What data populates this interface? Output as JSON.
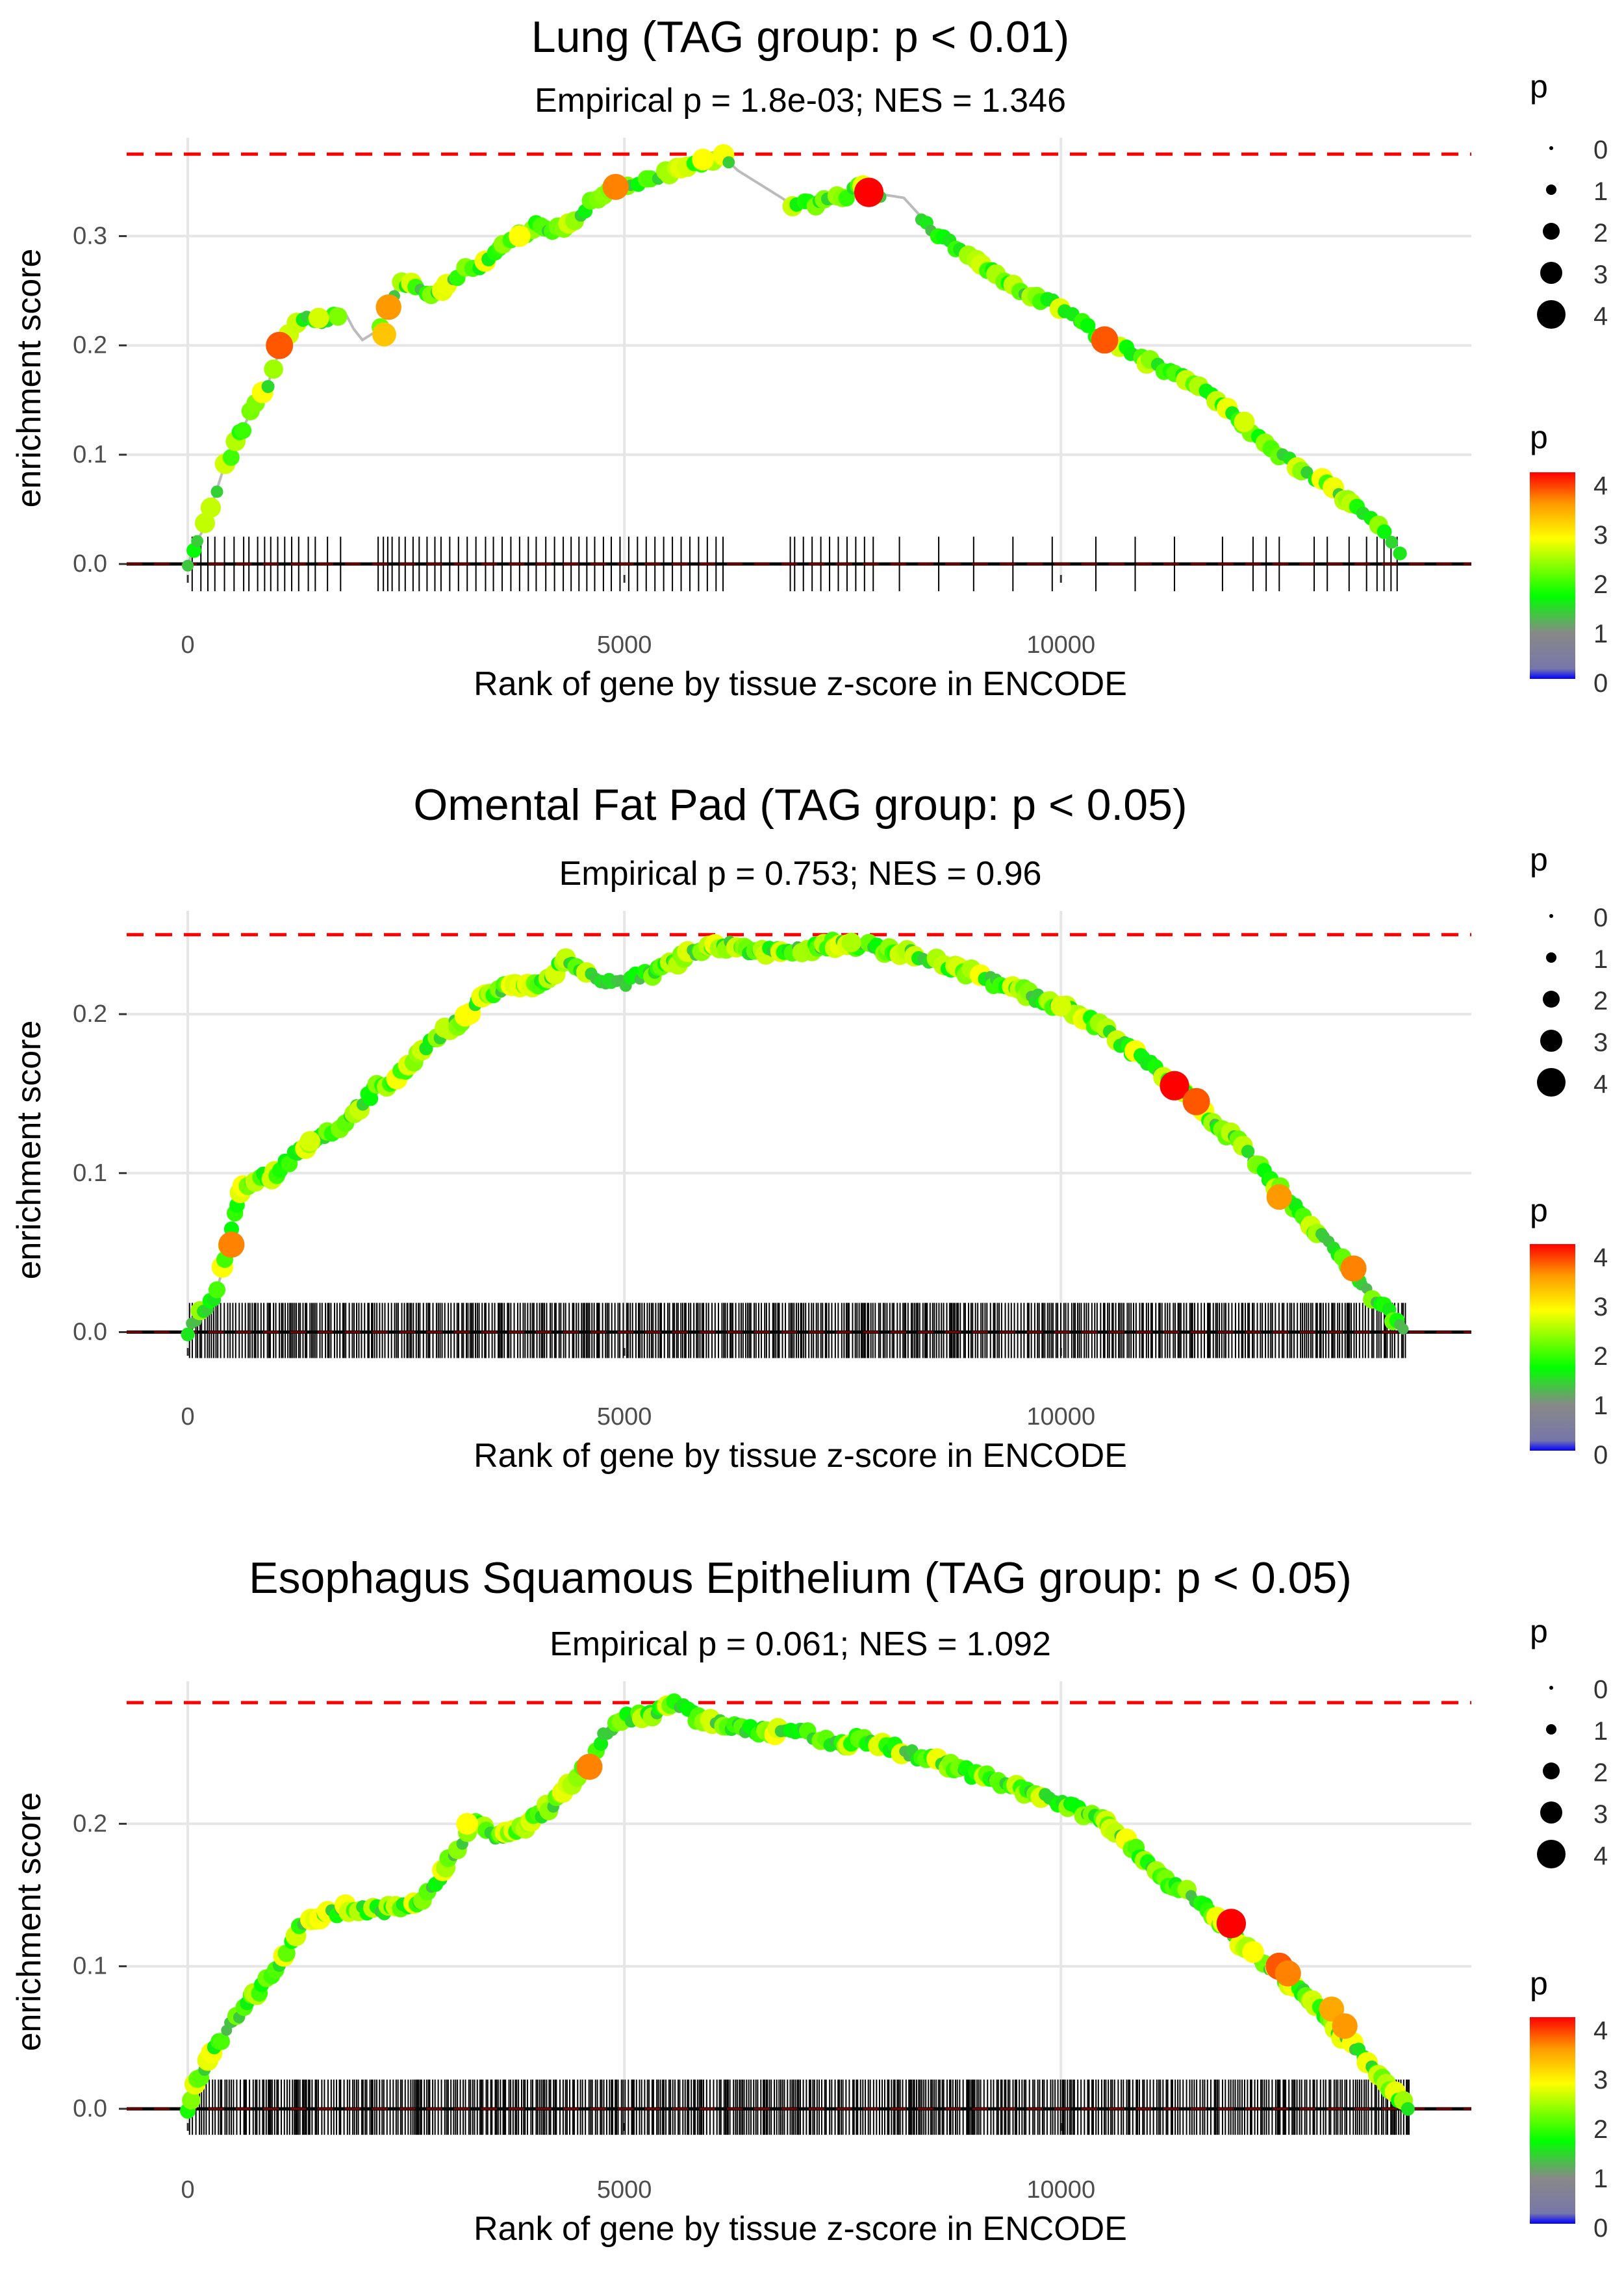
{
  "chart_data": [
    {
      "type": "line",
      "title": "Lung (TAG group: p < 0.01)",
      "subtitle": "Empirical p = 1.8e-03; NES = 1.346",
      "xlabel": "Rank of gene by tissue z-score in ENCODE",
      "ylabel": "enrichment score",
      "xlim": [
        -700,
        14700
      ],
      "ylim": [
        -0.01,
        0.39
      ],
      "x_ticks": [
        0,
        5000,
        10000
      ],
      "x_tick_labels": [
        "0",
        "5000",
        "10000"
      ],
      "y_ticks": [
        0,
        0.1,
        0.2,
        0.3
      ],
      "y_tick_labels": [
        "0.0",
        "0.1",
        "0.2",
        "0.3"
      ],
      "max_es": 0.375,
      "curve": [
        [
          0,
          0.0
        ],
        [
          100,
          0.02
        ],
        [
          200,
          0.035
        ],
        [
          300,
          0.06
        ],
        [
          400,
          0.085
        ],
        [
          500,
          0.1
        ],
        [
          600,
          0.12
        ],
        [
          700,
          0.135
        ],
        [
          800,
          0.15
        ],
        [
          900,
          0.16
        ],
        [
          1000,
          0.185
        ],
        [
          1100,
          0.2
        ],
        [
          1200,
          0.22
        ],
        [
          1300,
          0.225
        ],
        [
          1500,
          0.22
        ],
        [
          1600,
          0.225
        ],
        [
          1800,
          0.23
        ],
        [
          1900,
          0.215
        ],
        [
          2000,
          0.205
        ],
        [
          2200,
          0.215
        ],
        [
          2300,
          0.235
        ],
        [
          2400,
          0.255
        ],
        [
          2600,
          0.255
        ],
        [
          2800,
          0.245
        ],
        [
          3000,
          0.255
        ],
        [
          3200,
          0.27
        ],
        [
          3400,
          0.275
        ],
        [
          3600,
          0.29
        ],
        [
          3800,
          0.3
        ],
        [
          4000,
          0.31
        ],
        [
          4200,
          0.305
        ],
        [
          4400,
          0.31
        ],
        [
          4600,
          0.33
        ],
        [
          4800,
          0.34
        ],
        [
          5000,
          0.345
        ],
        [
          5200,
          0.35
        ],
        [
          5400,
          0.355
        ],
        [
          5600,
          0.36
        ],
        [
          5800,
          0.365
        ],
        [
          6000,
          0.37
        ],
        [
          6100,
          0.375
        ],
        [
          6300,
          0.36
        ],
        [
          6700,
          0.34
        ],
        [
          6900,
          0.33
        ],
        [
          7200,
          0.33
        ],
        [
          7500,
          0.335
        ],
        [
          7700,
          0.345
        ],
        [
          7800,
          0.34
        ],
        [
          8200,
          0.335
        ],
        [
          8600,
          0.3
        ],
        [
          9000,
          0.28
        ],
        [
          9400,
          0.255
        ],
        [
          10000,
          0.235
        ],
        [
          10400,
          0.21
        ],
        [
          10700,
          0.2
        ],
        [
          11000,
          0.185
        ],
        [
          11400,
          0.17
        ],
        [
          11800,
          0.15
        ],
        [
          12200,
          0.12
        ],
        [
          12600,
          0.095
        ],
        [
          13000,
          0.075
        ],
        [
          13400,
          0.05
        ],
        [
          13700,
          0.03
        ],
        [
          13900,
          0.01
        ]
      ],
      "highlight_points": [
        [
          1050,
          0.2,
          3.8
        ],
        [
          2300,
          0.235,
          3.5
        ],
        [
          2250,
          0.21,
          3.2
        ],
        [
          4900,
          0.345,
          3.6
        ],
        [
          7800,
          0.34,
          4.2
        ],
        [
          10500,
          0.205,
          3.8
        ],
        [
          5900,
          0.37,
          2.8
        ],
        [
          1500,
          0.225,
          2.6
        ],
        [
          3800,
          0.3,
          2.8
        ],
        [
          12100,
          0.13,
          2.6
        ]
      ],
      "rug_x": [
        50,
        150,
        230,
        310,
        420,
        530,
        640,
        700,
        800,
        880,
        950,
        1030,
        1110,
        1190,
        1270,
        1380,
        1460,
        1600,
        1750,
        2180,
        2240,
        2290,
        2340,
        2420,
        2490,
        2580,
        2650,
        2740,
        2830,
        2900,
        3000,
        3100,
        3200,
        3300,
        3410,
        3500,
        3600,
        3700,
        3800,
        3900,
        3990,
        4100,
        4200,
        4300,
        4390,
        4480,
        4570,
        4660,
        4760,
        4850,
        4950,
        5050,
        5150,
        5250,
        5350,
        5450,
        5550,
        5650,
        5750,
        5850,
        5950,
        6050,
        6130,
        6900,
        6950,
        7050,
        7150,
        7250,
        7350,
        7450,
        7550,
        7650,
        7750,
        7850,
        8150,
        8600,
        9000,
        9450,
        9900,
        10400,
        10850,
        11300,
        11850,
        12200,
        12350,
        12500,
        12900,
        13050,
        13300,
        13500,
        13620,
        13700,
        13780,
        13850
      ]
    },
    {
      "type": "line",
      "title": "Omental Fat Pad (TAG group: p < 0.05)",
      "subtitle": "Empirical p = 0.753; NES = 0.96",
      "xlabel": "Rank of gene by tissue z-score in ENCODE",
      "ylabel": "enrichment score",
      "xlim": [
        -700,
        14700
      ],
      "ylim": [
        -0.01,
        0.265
      ],
      "x_ticks": [
        0,
        5000,
        10000
      ],
      "x_tick_labels": [
        "0",
        "5000",
        "10000"
      ],
      "y_ticks": [
        0,
        0.1,
        0.2
      ],
      "y_tick_labels": [
        "0.0",
        "0.1",
        "0.2"
      ],
      "max_es": 0.25,
      "curve": [
        [
          0,
          0.0
        ],
        [
          100,
          0.01
        ],
        [
          300,
          0.02
        ],
        [
          450,
          0.05
        ],
        [
          600,
          0.09
        ],
        [
          800,
          0.095
        ],
        [
          1000,
          0.1
        ],
        [
          1200,
          0.11
        ],
        [
          1400,
          0.12
        ],
        [
          1600,
          0.125
        ],
        [
          1800,
          0.13
        ],
        [
          2000,
          0.145
        ],
        [
          2200,
          0.155
        ],
        [
          2400,
          0.16
        ],
        [
          2600,
          0.17
        ],
        [
          2800,
          0.185
        ],
        [
          3000,
          0.19
        ],
        [
          3200,
          0.2
        ],
        [
          3400,
          0.21
        ],
        [
          3600,
          0.215
        ],
        [
          3800,
          0.22
        ],
        [
          4000,
          0.22
        ],
        [
          4200,
          0.225
        ],
        [
          4300,
          0.235
        ],
        [
          4500,
          0.225
        ],
        [
          5000,
          0.22
        ],
        [
          5500,
          0.23
        ],
        [
          6000,
          0.245
        ],
        [
          6500,
          0.24
        ],
        [
          7000,
          0.24
        ],
        [
          7500,
          0.245
        ],
        [
          8000,
          0.24
        ],
        [
          8500,
          0.235
        ],
        [
          9000,
          0.225
        ],
        [
          9500,
          0.215
        ],
        [
          10000,
          0.205
        ],
        [
          10500,
          0.19
        ],
        [
          11000,
          0.17
        ],
        [
          11300,
          0.155
        ],
        [
          11700,
          0.135
        ],
        [
          12100,
          0.115
        ],
        [
          12500,
          0.09
        ],
        [
          12900,
          0.065
        ],
        [
          13300,
          0.04
        ],
        [
          13600,
          0.02
        ],
        [
          13800,
          0.01
        ],
        [
          13950,
          0.0
        ]
      ],
      "highlight_points": [
        [
          500,
          0.055,
          3.6
        ],
        [
          11300,
          0.155,
          4.2
        ],
        [
          11550,
          0.145,
          3.8
        ],
        [
          12500,
          0.085,
          3.5
        ],
        [
          13350,
          0.04,
          3.6
        ],
        [
          1400,
          0.12,
          2.6
        ],
        [
          7600,
          0.245,
          2.4
        ],
        [
          10000,
          0.205,
          2.6
        ]
      ],
      "rug_x": []
    },
    {
      "type": "line",
      "title": "Esophagus Squamous Epithelium (TAG group: p < 0.05)",
      "subtitle": "Empirical p = 0.061; NES = 1.092",
      "xlabel": "Rank of gene by tissue z-score in ENCODE",
      "ylabel": "enrichment score",
      "xlim": [
        -700,
        14700
      ],
      "ylim": [
        -0.01,
        0.3
      ],
      "x_ticks": [
        0,
        5000,
        10000
      ],
      "x_tick_labels": [
        "0",
        "5000",
        "10000"
      ],
      "y_ticks": [
        0,
        0.1,
        0.2
      ],
      "y_tick_labels": [
        "0.0",
        "0.1",
        "0.2"
      ],
      "max_es": 0.285,
      "curve": [
        [
          0,
          0.0
        ],
        [
          100,
          0.02
        ],
        [
          300,
          0.04
        ],
        [
          500,
          0.06
        ],
        [
          700,
          0.075
        ],
        [
          900,
          0.09
        ],
        [
          1100,
          0.105
        ],
        [
          1300,
          0.13
        ],
        [
          1500,
          0.135
        ],
        [
          1800,
          0.14
        ],
        [
          2100,
          0.14
        ],
        [
          2400,
          0.14
        ],
        [
          2700,
          0.145
        ],
        [
          2900,
          0.165
        ],
        [
          3100,
          0.185
        ],
        [
          3300,
          0.2
        ],
        [
          3500,
          0.19
        ],
        [
          3800,
          0.195
        ],
        [
          4000,
          0.205
        ],
        [
          4200,
          0.215
        ],
        [
          4400,
          0.23
        ],
        [
          4600,
          0.245
        ],
        [
          4800,
          0.265
        ],
        [
          5000,
          0.275
        ],
        [
          5200,
          0.275
        ],
        [
          5400,
          0.28
        ],
        [
          5600,
          0.285
        ],
        [
          5800,
          0.275
        ],
        [
          6100,
          0.27
        ],
        [
          6500,
          0.265
        ],
        [
          7000,
          0.265
        ],
        [
          7400,
          0.255
        ],
        [
          7700,
          0.26
        ],
        [
          8000,
          0.255
        ],
        [
          8500,
          0.245
        ],
        [
          9000,
          0.235
        ],
        [
          9500,
          0.225
        ],
        [
          10000,
          0.215
        ],
        [
          10400,
          0.205
        ],
        [
          10800,
          0.185
        ],
        [
          11200,
          0.16
        ],
        [
          11600,
          0.145
        ],
        [
          12000,
          0.12
        ],
        [
          12400,
          0.1
        ],
        [
          12800,
          0.08
        ],
        [
          13100,
          0.06
        ],
        [
          13400,
          0.04
        ],
        [
          13700,
          0.02
        ],
        [
          13900,
          0.005
        ],
        [
          14000,
          0.0
        ]
      ],
      "highlight_points": [
        [
          4600,
          0.24,
          3.6
        ],
        [
          11950,
          0.13,
          4.2
        ],
        [
          12500,
          0.1,
          3.8
        ],
        [
          12600,
          0.095,
          3.6
        ],
        [
          13100,
          0.07,
          3.4
        ],
        [
          13250,
          0.058,
          3.5
        ],
        [
          3200,
          0.2,
          2.8
        ],
        [
          12200,
          0.11,
          2.8
        ]
      ],
      "rug_x": []
    }
  ],
  "legends": [
    {
      "size_title": "p",
      "size_labels": [
        "0",
        "1",
        "2",
        "3",
        "4"
      ],
      "color_title": "p",
      "color_labels": [
        "4",
        "3",
        "2",
        "1",
        "0"
      ]
    },
    {
      "size_title": "p",
      "size_labels": [
        "0",
        "1",
        "2",
        "3",
        "4"
      ],
      "color_title": "p",
      "color_labels": [
        "4",
        "3",
        "2",
        "1",
        "0"
      ]
    },
    {
      "size_title": "p",
      "size_labels": [
        "0",
        "1",
        "2",
        "3",
        "4"
      ],
      "color_title": "p",
      "color_labels": [
        "4",
        "3",
        "2",
        "1",
        "0"
      ]
    }
  ],
  "colors": {
    "gradient": [
      "#0000ff",
      "#999999",
      "#00ff00",
      "#ffff00",
      "#ff8800",
      "#ff0000"
    ],
    "max_line": "#ff0000",
    "curve_line": "#bbbbbb",
    "grid": "#e6e6e6",
    "rug": "#000000"
  }
}
